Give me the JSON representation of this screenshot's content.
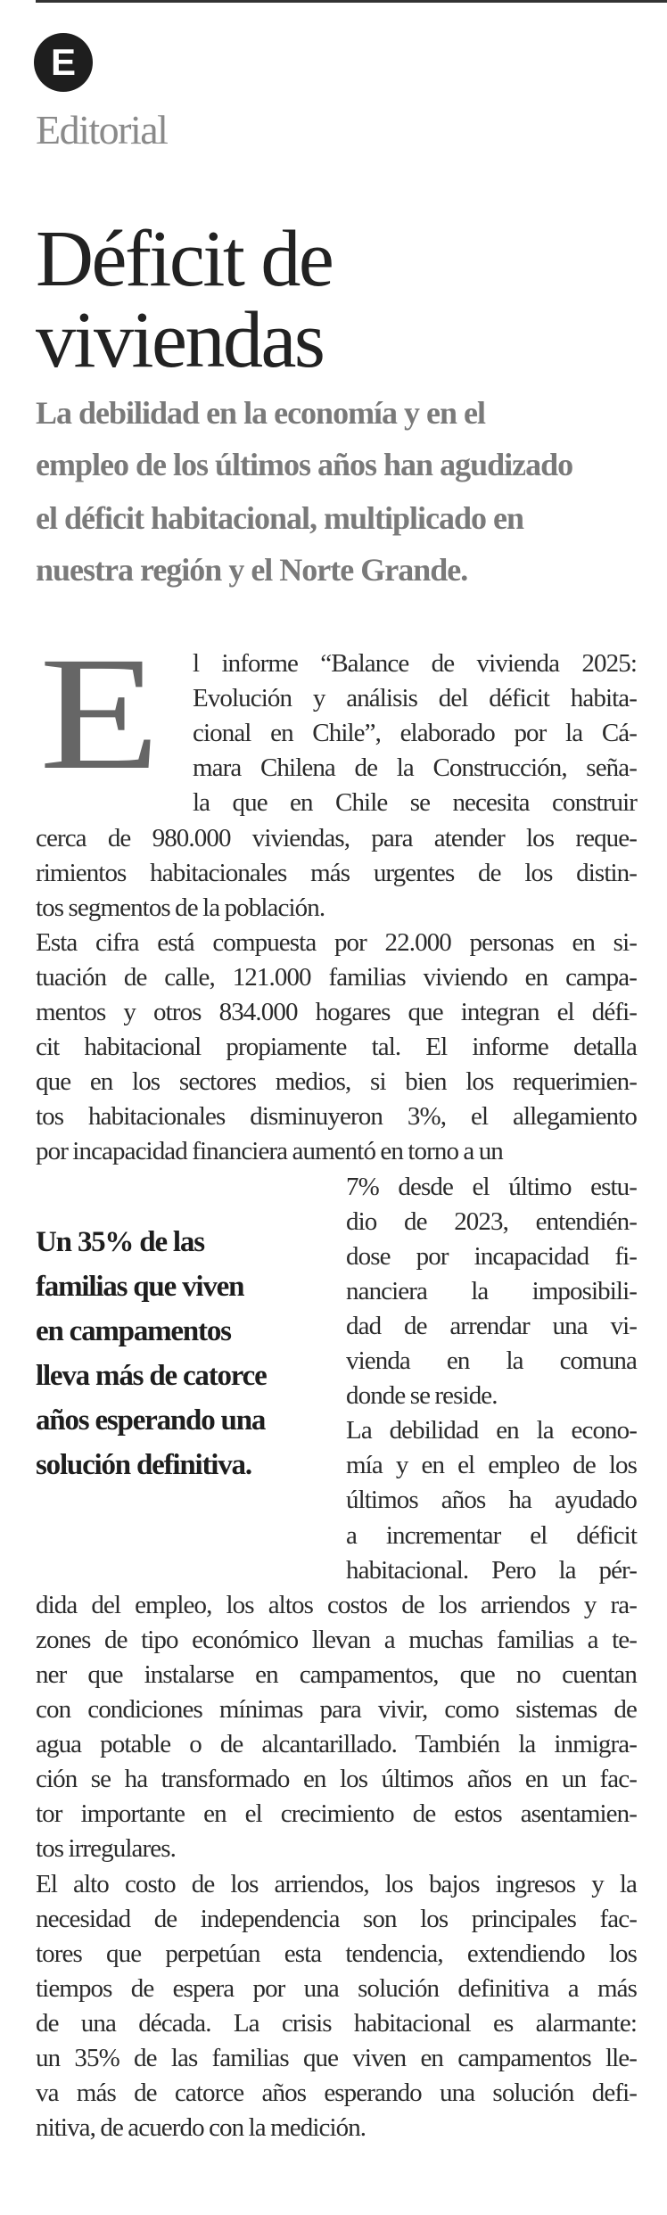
{
  "header": {
    "badge_letter": "E",
    "section": "Editorial"
  },
  "headline": [
    "Déficit de",
    "viviendas"
  ],
  "lede": [
    "La debilidad en la economía y en el",
    "empleo de los últimos años han agudizado",
    "el déficit habitacional, multiplicado en",
    "nuestra región y el Norte Grande."
  ],
  "body": {
    "drop_cap": "E",
    "drop_cap_lines": [
      "l informe “Balance de vivienda 2025:",
      "Evolución y análisis del déficit habita-",
      "cional en Chile”, elaborado por la Cá-",
      "mara Chilena de la Construcción, seña-",
      "la que en Chile se necesita construir"
    ],
    "full_lines_a": [
      "cerca de 980.000 viviendas, para atender los reque-",
      "rimientos habitacionales más urgentes de los distin-",
      "tos segmentos de la población.",
      "Esta cifra está compuesta por 22.000 personas en si-",
      "tuación de calle, 121.000 familias viviendo en campa-",
      "mentos y otros 834.000 hogares que integran el défi-",
      "cit habitacional propiamente tal.  El informe detalla",
      "que en los sectores medios, si bien los requerimien-",
      "tos habitacionales disminuyeron 3%, el allegamiento",
      "por incapacidad financiera aumentó en torno a un"
    ],
    "column_lines": [
      "7% desde el último estu-",
      "dio de 2023, entendién-",
      "dose por incapacidad fi-",
      "nanciera la imposibili-",
      "dad de arrendar una vi-",
      "vienda en la comuna",
      "donde se reside.",
      "La debilidad en la econo-",
      "mía y en el empleo de los",
      "últimos años ha ayudado",
      "a incrementar el déficit",
      "habitacional. Pero la pér-"
    ],
    "full_lines_b": [
      "dida del empleo, los altos costos de los arriendos y ra-",
      "zones de tipo económico llevan a muchas familias a te-",
      "ner que instalarse en campamentos, que no cuentan",
      "con condiciones mínimas para vivir, como sistemas de",
      "agua potable o de alcantarillado. También la inmigra-",
      "ción se ha transformado en los últimos años en un fac-",
      "tor importante en el crecimiento de estos asentamien-",
      "tos irregulares.",
      "El alto costo de los arriendos, los bajos ingresos y la",
      "necesidad de independencia son los principales fac-",
      "tores que perpetúan esta tendencia, extendiendo los",
      "tiempos de espera por una solución definitiva a más",
      "de una década. La crisis habitacional es alarmante:",
      "un 35% de las familias que viven en campamentos lle-",
      "va más de catorce años esperando una solución defi-",
      "nitiva, de acuerdo con la medición."
    ]
  },
  "pull_quote": [
    "Un 35% de las",
    "familias que viven",
    "en campamentos",
    "lleva más de catorce",
    "años esperando una",
    "solución definitiva."
  ],
  "colors": {
    "section_gray": "#8a8a8a",
    "lede_gray": "#7a7a7a",
    "drop_cap_gray": "#666666",
    "badge": "#1e1e1e"
  }
}
